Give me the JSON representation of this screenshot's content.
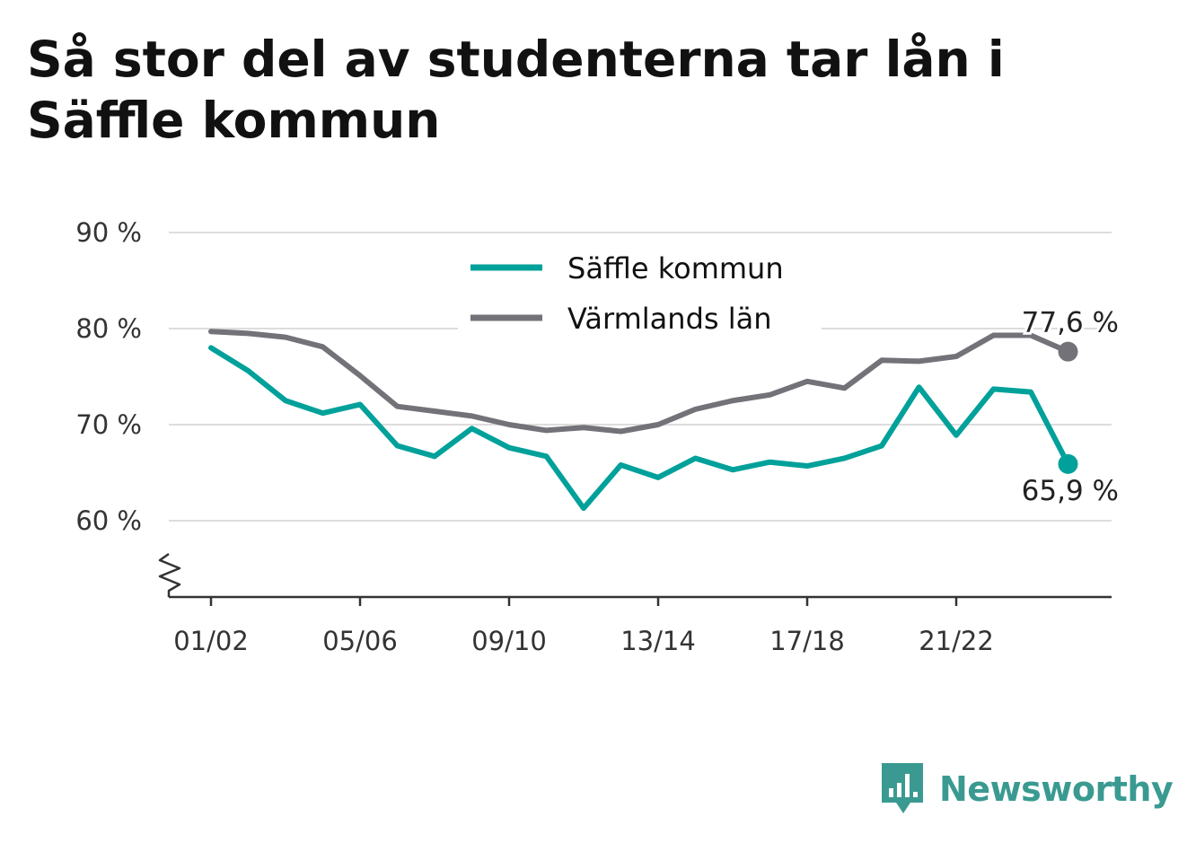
{
  "title": "Så stor del av studenterna tar lån i Säffle kommun",
  "brand": {
    "name": "Newsworthy",
    "icon": "newsworthy-logo-icon",
    "color": "#3a9a91"
  },
  "chart_data": {
    "type": "line",
    "title": "Så stor del av studenterna tar lån i Säffle kommun",
    "x": [
      "01/02",
      "02/03",
      "03/04",
      "04/05",
      "05/06",
      "06/07",
      "07/08",
      "08/09",
      "09/10",
      "10/11",
      "11/12",
      "12/13",
      "13/14",
      "14/15",
      "15/16",
      "16/17",
      "17/18",
      "18/19",
      "19/20",
      "20/21",
      "21/22",
      "22/23",
      "23/24",
      "24/25"
    ],
    "x_tick_labels": [
      "01/02",
      "05/06",
      "09/10",
      "13/14",
      "17/18",
      "21/22"
    ],
    "y_ticks": [
      60,
      70,
      80,
      90
    ],
    "y_tick_labels": [
      "60 %",
      "70 %",
      "80 %",
      "90 %"
    ],
    "ylim": [
      52,
      90
    ],
    "y_axis_broken": true,
    "grid": true,
    "legend_position": "top-center",
    "series": [
      {
        "name": "Säffle kommun",
        "color": "#00a19a",
        "values": [
          78.0,
          75.6,
          72.5,
          71.2,
          72.1,
          67.8,
          66.7,
          69.6,
          67.6,
          66.7,
          61.3,
          65.8,
          64.5,
          66.5,
          65.3,
          66.1,
          65.7,
          66.5,
          67.8,
          73.9,
          68.9,
          73.7,
          73.4,
          65.9
        ],
        "end_label": "65,9 %"
      },
      {
        "name": "Värmlands län",
        "color": "#737278",
        "values": [
          79.7,
          79.5,
          79.1,
          78.1,
          75.1,
          71.9,
          71.4,
          70.9,
          70.0,
          69.4,
          69.7,
          69.3,
          70.0,
          71.6,
          72.5,
          73.1,
          74.5,
          73.8,
          76.7,
          76.6,
          77.1,
          79.3,
          79.3,
          77.6
        ],
        "end_label": "77,6 %"
      }
    ]
  }
}
